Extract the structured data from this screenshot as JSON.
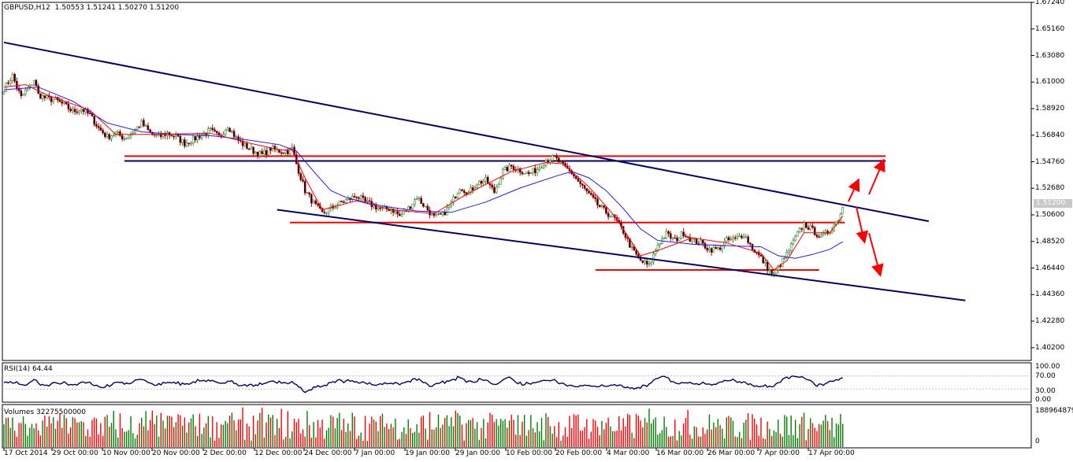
{
  "header": {
    "symbol": "GBPUSD,H12",
    "ohlc": "1.50553 1.51241 1.50270 1.51200"
  },
  "rsi_panel": {
    "label": "RSI(14) 64.44",
    "ticks": [
      "100.00",
      "70.00",
      "30.00",
      "0.00"
    ]
  },
  "volume_panel": {
    "label": "Volumes 32275500000",
    "ticks": [
      "1889648792",
      "0"
    ]
  },
  "current_price_label": "1.51200",
  "colors": {
    "bull_candle": "#2e8b2e",
    "bear_candle": "#b00000",
    "trendline": "#00006e",
    "support_resistance": "#ff0000",
    "ma_slow": "#1a1aff",
    "ma_fast": "#ff0000",
    "rsi_line": "#00006e",
    "volume_up": "#008000",
    "volume_down": "#ff0000"
  },
  "chart_data": {
    "type": "candlestick",
    "symbol": "GBPUSD",
    "timeframe": "H12",
    "y_ticks": [
      "1.67240",
      "1.65160",
      "1.63080",
      "1.61000",
      "1.58920",
      "1.56840",
      "1.54760",
      "1.52680",
      "1.50600",
      "1.48520",
      "1.46440",
      "1.44360",
      "1.42280",
      "1.40200"
    ],
    "ylim": [
      1.392,
      1.6724
    ],
    "x_ticks": [
      "17 Oct 2014",
      "29 Oct 00:00",
      "10 Nov 00:00",
      "20 Nov 00:00",
      "2 Dec 00:00",
      "12 Dec 00:00",
      "24 Dec 00:00",
      "7 Jan 00:00",
      "19 Jan 00:00",
      "29 Jan 00:00",
      "10 Feb 00:00",
      "20 Feb 00:00",
      "4 Mar 00:00",
      "16 Mar 00:00",
      "26 Mar 00:00",
      "7 Apr 00:00",
      "17 Apr 00:00"
    ],
    "close_path": [
      [
        0,
        1.605
      ],
      [
        2,
        1.61
      ],
      [
        4,
        1.615
      ],
      [
        6,
        1.606
      ],
      [
        8,
        1.598
      ],
      [
        10,
        1.603
      ],
      [
        12,
        1.606
      ],
      [
        14,
        1.612
      ],
      [
        16,
        1.6
      ],
      [
        20,
        1.597
      ],
      [
        24,
        1.596
      ],
      [
        28,
        1.592
      ],
      [
        32,
        1.587
      ],
      [
        36,
        1.589
      ],
      [
        40,
        1.584
      ],
      [
        44,
        1.574
      ],
      [
        48,
        1.567
      ],
      [
        52,
        1.57
      ],
      [
        56,
        1.566
      ],
      [
        60,
        1.571
      ],
      [
        64,
        1.578
      ],
      [
        68,
        1.57
      ],
      [
        72,
        1.567
      ],
      [
        76,
        1.57
      ],
      [
        80,
        1.567
      ],
      [
        84,
        1.562
      ],
      [
        88,
        1.565
      ],
      [
        92,
        1.569
      ],
      [
        96,
        1.572
      ],
      [
        100,
        1.567
      ],
      [
        104,
        1.576
      ],
      [
        108,
        1.566
      ],
      [
        112,
        1.56
      ],
      [
        116,
        1.556
      ],
      [
        120,
        1.553
      ],
      [
        124,
        1.558
      ],
      [
        128,
        1.556
      ],
      [
        132,
        1.556
      ],
      [
        134,
        1.558
      ],
      [
        136,
        1.546
      ],
      [
        140,
        1.525
      ],
      [
        144,
        1.515
      ],
      [
        148,
        1.507
      ],
      [
        152,
        1.511
      ],
      [
        156,
        1.515
      ],
      [
        160,
        1.518
      ],
      [
        164,
        1.521
      ],
      [
        168,
        1.516
      ],
      [
        172,
        1.513
      ],
      [
        176,
        1.51
      ],
      [
        180,
        1.511
      ],
      [
        184,
        1.505
      ],
      [
        188,
        1.511
      ],
      [
        192,
        1.52
      ],
      [
        196,
        1.512
      ],
      [
        200,
        1.504
      ],
      [
        204,
        1.506
      ],
      [
        208,
        1.515
      ],
      [
        212,
        1.528
      ],
      [
        216,
        1.523
      ],
      [
        220,
        1.531
      ],
      [
        224,
        1.533
      ],
      [
        228,
        1.524
      ],
      [
        232,
        1.54
      ],
      [
        236,
        1.544
      ],
      [
        240,
        1.541
      ],
      [
        244,
        1.538
      ],
      [
        248,
        1.542
      ],
      [
        252,
        1.549
      ],
      [
        256,
        1.551
      ],
      [
        260,
        1.544
      ],
      [
        264,
        1.539
      ],
      [
        268,
        1.53
      ],
      [
        272,
        1.522
      ],
      [
        276,
        1.514
      ],
      [
        280,
        1.508
      ],
      [
        284,
        1.503
      ],
      [
        288,
        1.493
      ],
      [
        292,
        1.479
      ],
      [
        296,
        1.47
      ],
      [
        300,
        1.466
      ],
      [
        304,
        1.483
      ],
      [
        308,
        1.491
      ],
      [
        312,
        1.486
      ],
      [
        316,
        1.492
      ],
      [
        320,
        1.486
      ],
      [
        324,
        1.484
      ],
      [
        328,
        1.479
      ],
      [
        332,
        1.479
      ],
      [
        336,
        1.486
      ],
      [
        340,
        1.487
      ],
      [
        344,
        1.491
      ],
      [
        348,
        1.48
      ],
      [
        352,
        1.472
      ],
      [
        356,
        1.462
      ],
      [
        358,
        1.459
      ],
      [
        360,
        1.465
      ],
      [
        364,
        1.475
      ],
      [
        368,
        1.488
      ],
      [
        372,
        1.499
      ],
      [
        376,
        1.494
      ],
      [
        380,
        1.488
      ],
      [
        384,
        1.494
      ],
      [
        388,
        1.503
      ],
      [
        390,
        1.512
      ]
    ],
    "ma_slow_path": [
      [
        0,
        1.604
      ],
      [
        16,
        1.606
      ],
      [
        32,
        1.595
      ],
      [
        48,
        1.578
      ],
      [
        64,
        1.571
      ],
      [
        80,
        1.569
      ],
      [
        96,
        1.568
      ],
      [
        112,
        1.565
      ],
      [
        128,
        1.561
      ],
      [
        136,
        1.556
      ],
      [
        144,
        1.54
      ],
      [
        152,
        1.525
      ],
      [
        160,
        1.519
      ],
      [
        176,
        1.513
      ],
      [
        192,
        1.509
      ],
      [
        208,
        1.508
      ],
      [
        224,
        1.516
      ],
      [
        240,
        1.527
      ],
      [
        256,
        1.536
      ],
      [
        264,
        1.54
      ],
      [
        272,
        1.535
      ],
      [
        280,
        1.525
      ],
      [
        288,
        1.511
      ],
      [
        296,
        1.495
      ],
      [
        304,
        1.486
      ],
      [
        320,
        1.483
      ],
      [
        336,
        1.482
      ],
      [
        352,
        1.481
      ],
      [
        360,
        1.474
      ],
      [
        368,
        1.472
      ],
      [
        376,
        1.475
      ],
      [
        384,
        1.479
      ],
      [
        390,
        1.485
      ]
    ],
    "ma_fast_path": [
      [
        0,
        1.606
      ],
      [
        10,
        1.608
      ],
      [
        20,
        1.6
      ],
      [
        40,
        1.588
      ],
      [
        52,
        1.569
      ],
      [
        72,
        1.569
      ],
      [
        96,
        1.57
      ],
      [
        112,
        1.563
      ],
      [
        128,
        1.557
      ],
      [
        134,
        1.557
      ],
      [
        140,
        1.535
      ],
      [
        148,
        1.51
      ],
      [
        164,
        1.517
      ],
      [
        180,
        1.51
      ],
      [
        200,
        1.507
      ],
      [
        216,
        1.523
      ],
      [
        236,
        1.54
      ],
      [
        252,
        1.547
      ],
      [
        260,
        1.546
      ],
      [
        272,
        1.528
      ],
      [
        284,
        1.505
      ],
      [
        296,
        1.474
      ],
      [
        304,
        1.478
      ],
      [
        320,
        1.488
      ],
      [
        336,
        1.484
      ],
      [
        352,
        1.476
      ],
      [
        358,
        1.463
      ],
      [
        364,
        1.47
      ],
      [
        372,
        1.492
      ],
      [
        384,
        1.492
      ],
      [
        390,
        1.505
      ]
    ],
    "trendlines": [
      {
        "name": "upper-channel-line",
        "from": [
          0,
          1.641
        ],
        "to": [
          430,
          1.501
        ]
      },
      {
        "name": "lower-channel-line",
        "from": [
          127,
          1.51
        ],
        "to": [
          447,
          1.439
        ]
      }
    ],
    "horizontal_levels": [
      {
        "name": "resistance-upper",
        "price": 1.552,
        "from_bar": 56,
        "to_bar": 410,
        "color": "red"
      },
      {
        "name": "resistance-blue",
        "price": 1.5482,
        "from_bar": 56,
        "to_bar": 410,
        "color": "blue"
      },
      {
        "name": "support-mid",
        "price": 1.5,
        "from_bar": 133,
        "to_bar": 391,
        "color": "red"
      },
      {
        "name": "support-low",
        "price": 1.4629,
        "from_bar": 275,
        "to_bar": 379,
        "color": "red"
      }
    ],
    "rsi": {
      "ylim": [
        0,
        100
      ],
      "last": 64.44,
      "levels": [
        30,
        70
      ]
    },
    "volume": {
      "ylim": [
        0,
        1889648792
      ]
    }
  }
}
